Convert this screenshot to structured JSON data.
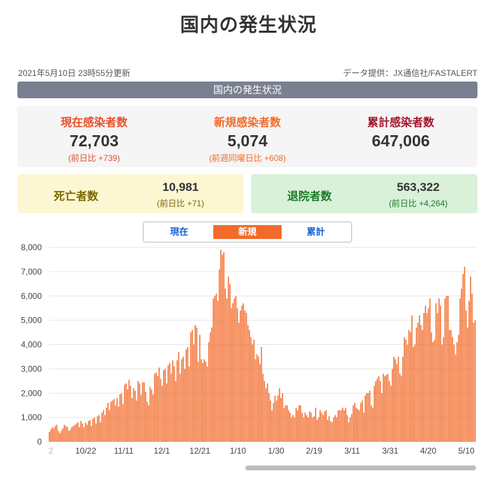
{
  "title": "国内の発生状況",
  "meta": {
    "updated": "2021年5月10日 23時55分更新",
    "source": "データ提供：JX通信社/FASTALERT"
  },
  "banner": "国内の発生状況",
  "stats": {
    "current": {
      "label": "現在感染者数",
      "value": "72,703",
      "sub": "(前日比 +739)",
      "color": "#e8502a"
    },
    "new": {
      "label": "新規感染者数",
      "value": "5,074",
      "sub": "(前週同曜日比 +608)",
      "color": "#f26b2a"
    },
    "total": {
      "label": "累計感染者数",
      "value": "647,006",
      "sub": "",
      "color": "#a3142a"
    }
  },
  "deaths": {
    "label": "死亡者数",
    "value": "10,981",
    "sub": "(前日比 +71)",
    "bg": "#fdf6d2",
    "color": "#7a6a00"
  },
  "recovered": {
    "label": "退院者数",
    "value": "563,322",
    "sub": "(前日比 +4,264)",
    "bg": "#d9f1d8",
    "color": "#1e7a2a"
  },
  "tabs": [
    {
      "label": "現在",
      "active": false
    },
    {
      "label": "新規",
      "active": true
    },
    {
      "label": "累計",
      "active": false
    }
  ],
  "chart_data": {
    "type": "bar",
    "title": "",
    "xlabel": "",
    "ylabel": "",
    "ylim": [
      0,
      8000
    ],
    "yticks": [
      "8,000",
      "7,000",
      "6,000",
      "5,000",
      "4,000",
      "3,000",
      "2,000",
      "1,000",
      "0"
    ],
    "xtick_labels": [
      "10/22",
      "11/11",
      "12/1",
      "12/21",
      "1/10",
      "1/30",
      "2/19",
      "3/11",
      "3/31",
      "4/20",
      "5/10"
    ],
    "first_label": "2",
    "bar_color": "#f26b2a",
    "grid": true,
    "values": [
      400,
      500,
      600,
      550,
      650,
      700,
      450,
      350,
      450,
      550,
      700,
      650,
      600,
      450,
      500,
      600,
      650,
      700,
      750,
      800,
      600,
      850,
      750,
      600,
      800,
      700,
      850,
      900,
      650,
      950,
      1000,
      750,
      1050,
      1100,
      800,
      1200,
      1300,
      1100,
      1400,
      1600,
      1300,
      1650,
      1700,
      1750,
      1500,
      1800,
      1450,
      1950,
      2000,
      1550,
      2350,
      2400,
      2150,
      2550,
      2300,
      1800,
      2200,
      2100,
      1700,
      2500,
      2400,
      1950,
      2450,
      2450,
      2050,
      1650,
      1500,
      2250,
      2150,
      1950,
      2800,
      2850,
      2700,
      3050,
      2600,
      2300,
      2950,
      3000,
      2400,
      3150,
      3250,
      2800,
      3350,
      3100,
      2500,
      3350,
      3700,
      2800,
      3400,
      3500,
      3000,
      3800,
      3900,
      3100,
      4500,
      4600,
      4000,
      4800,
      4700,
      3300,
      4400,
      3400,
      3250,
      3400,
      3300,
      3100,
      4100,
      4500,
      4700,
      5900,
      6000,
      6100,
      5800,
      7100,
      7900,
      7700,
      7800,
      6300,
      5900,
      6800,
      6500,
      5500,
      5700,
      5900,
      6000,
      5500,
      4900,
      5400,
      5600,
      5700,
      5400,
      5300,
      4800,
      4600,
      4300,
      4000,
      4200,
      3400,
      3600,
      3500,
      3200,
      3900,
      2800,
      2500,
      2200,
      2400,
      2000,
      1700,
      1300,
      1600,
      1900,
      1700,
      1900,
      2200,
      1800,
      2000,
      1400,
      1500,
      1500,
      1300,
      1200,
      1000,
      1100,
      1000,
      1400,
      1300,
      1500,
      1500,
      1200,
      1000,
      1200,
      1100,
      1000,
      1250,
      1200,
      1000,
      1050,
      1400,
      900,
      1000,
      1300,
      1200,
      1100,
      1250,
      1300,
      900,
      1050,
      850,
      800,
      1000,
      1100,
      1000,
      1300,
      1300,
      1300,
      1400,
      1300,
      1400,
      1100,
      800,
      1000,
      1150,
      1500,
      1600,
      1400,
      1350,
      1300,
      1600,
      1700,
      1200,
      1900,
      2000,
      2000,
      2100,
      1500,
      1400,
      2300,
      2500,
      2600,
      2700,
      2500,
      2000,
      2800,
      2700,
      2750,
      2800,
      2500,
      2300,
      3000,
      3500,
      3400,
      3200,
      3500,
      2800,
      2700,
      3500,
      4300,
      4200,
      4000,
      4600,
      4500,
      5200,
      3900,
      4000,
      4700,
      4900,
      5200,
      4800,
      4600,
      5300,
      5600,
      5300,
      5500,
      5900,
      4500,
      4100,
      4200,
      5700,
      5300,
      5900,
      5600,
      4000,
      4300,
      5900,
      6000,
      6000,
      4600,
      4600,
      4300,
      4000,
      3600,
      4100,
      4400,
      5900,
      6300,
      6900,
      7200,
      5400,
      4700,
      5800,
      6800,
      6100,
      4900,
      5000
    ]
  }
}
